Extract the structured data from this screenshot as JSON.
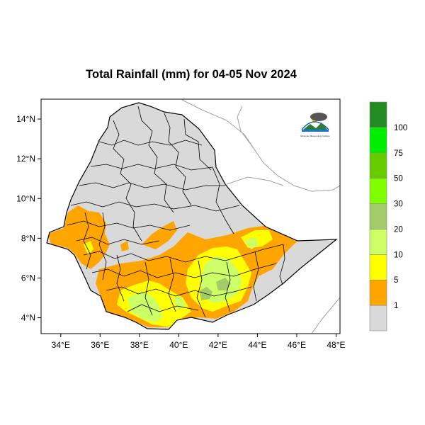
{
  "title": "Total Rainfall (mm) for 04-05 Nov 2024",
  "chart_data": {
    "type": "heatmap",
    "variable": "Total Rainfall (mm)",
    "period": "04-05 Nov 2024",
    "x_axis": {
      "range": [
        33,
        48.2
      ],
      "ticks": [
        "34°E",
        "36°E",
        "38°E",
        "40°E",
        "42°E",
        "44°E",
        "46°E",
        "48°E"
      ],
      "tick_values": [
        34,
        36,
        38,
        40,
        42,
        44,
        46,
        48
      ]
    },
    "y_axis": {
      "range": [
        3.2,
        15
      ],
      "ticks": [
        "4°N",
        "6°N",
        "8°N",
        "10°N",
        "12°N",
        "14°N"
      ],
      "tick_values": [
        4,
        6,
        8,
        10,
        12,
        14
      ]
    },
    "legend": {
      "placement": "right",
      "labels": [
        "1",
        "5",
        "10",
        "20",
        "30",
        "50",
        "75",
        "100"
      ],
      "bins": [
        {
          "range": "< 1",
          "color": "#d9d9d9"
        },
        {
          "range": "1 - 5",
          "color": "#ffa500"
        },
        {
          "range": "5 - 10",
          "color": "#ffff00"
        },
        {
          "range": "10 - 20",
          "color": "#ccff66"
        },
        {
          "range": "20 - 30",
          "color": "#a2cc6a"
        },
        {
          "range": "30 - 50",
          "color": "#7fff00"
        },
        {
          "range": "50 - 75",
          "color": "#66cc00"
        },
        {
          "range": "75 - 100",
          "color": "#00ee00"
        },
        {
          "range": "> 100",
          "color": "#228b22"
        }
      ]
    }
  },
  "colors": {
    "land_no_rain": "#d9d9d9",
    "border": "#000000",
    "coast": "#999999"
  },
  "logo": {
    "icon": "meteorology-agency-logo",
    "text": "Ethiopian Meteorology Institute"
  }
}
